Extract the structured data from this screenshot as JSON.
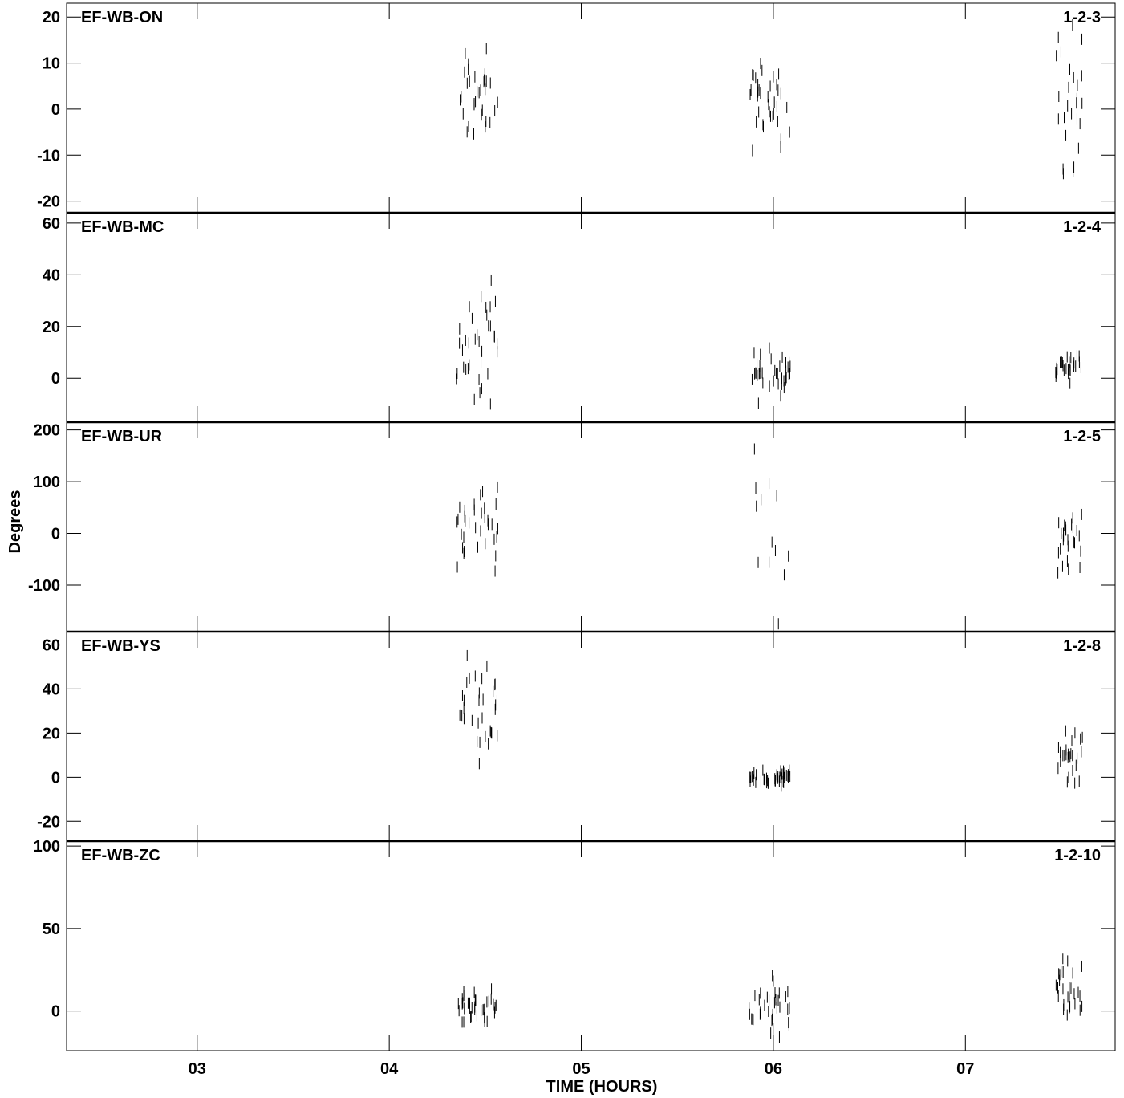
{
  "chart_data": {
    "type": "scatter",
    "title": "",
    "xlabel": "TIME (HOURS)",
    "ylabel": "Degrees",
    "x_tick_labels": [
      "03",
      "04",
      "05",
      "06",
      "07"
    ],
    "xlim": [
      2.32,
      7.78
    ],
    "panels": [
      {
        "baseline": "EF-WB-ON",
        "ident": "1-2-3",
        "ylim": [
          -22.5,
          23
        ],
        "yticks": [
          20,
          10,
          0,
          -10,
          -20
        ],
        "y_tick_labels": [
          "20",
          "10",
          "0",
          "-10",
          "-20"
        ],
        "clusters": [
          {
            "x_start": 4.35,
            "x_end": 4.57,
            "center": 2,
            "spread": 9,
            "n": 34
          },
          {
            "x_start": 5.87,
            "x_end": 6.09,
            "center": 1,
            "spread": 8,
            "n": 36
          },
          {
            "x_start": 7.47,
            "x_end": 7.61,
            "center": 2,
            "spread": 14,
            "n": 26
          }
        ]
      },
      {
        "baseline": "EF-WB-MC",
        "ident": "1-2-4",
        "ylim": [
          -17,
          64
        ],
        "yticks": [
          60,
          40,
          20,
          0
        ],
        "y_tick_labels": [
          "60",
          "40",
          "20",
          "0"
        ],
        "clusters": [
          {
            "x_start": 4.35,
            "x_end": 4.57,
            "center": 15,
            "spread": 22,
            "n": 36
          },
          {
            "x_start": 5.87,
            "x_end": 6.09,
            "center": 1,
            "spread": 8,
            "n": 38
          },
          {
            "x_start": 7.47,
            "x_end": 7.61,
            "center": 5,
            "spread": 5,
            "n": 28
          }
        ]
      },
      {
        "baseline": "EF-WB-UR",
        "ident": "1-2-5",
        "ylim": [
          -190,
          215
        ],
        "yticks": [
          200,
          100,
          0,
          -100
        ],
        "y_tick_labels": [
          "200",
          "100",
          "0",
          "-100"
        ],
        "clusters": [
          {
            "x_start": 4.35,
            "x_end": 4.57,
            "center": 15,
            "spread": 70,
            "n": 34
          },
          {
            "x_start": 5.9,
            "x_end": 6.09,
            "center": 0,
            "spread": 180,
            "n": 14
          },
          {
            "x_start": 7.47,
            "x_end": 7.61,
            "center": -15,
            "spread": 60,
            "n": 28
          }
        ]
      },
      {
        "baseline": "EF-WB-YS",
        "ident": "1-2-8",
        "ylim": [
          -29,
          66
        ],
        "yticks": [
          60,
          40,
          20,
          0,
          -20
        ],
        "y_tick_labels": [
          "60",
          "40",
          "20",
          "0",
          "-20"
        ],
        "clusters": [
          {
            "x_start": 4.35,
            "x_end": 4.57,
            "center": 32,
            "spread": 18,
            "n": 34
          },
          {
            "x_start": 5.87,
            "x_end": 6.09,
            "center": 0,
            "spread": 3,
            "n": 48
          },
          {
            "x_start": 7.47,
            "x_end": 7.61,
            "center": 10,
            "spread": 10,
            "n": 26
          }
        ]
      },
      {
        "baseline": "EF-WB-ZC",
        "ident": "1-2-10",
        "ylim": [
          -24,
          103
        ],
        "yticks": [
          100,
          50,
          0
        ],
        "y_tick_labels": [
          "100",
          "50",
          "0"
        ],
        "clusters": [
          {
            "x_start": 4.35,
            "x_end": 4.57,
            "center": 3,
            "spread": 8,
            "n": 36
          },
          {
            "x_start": 5.87,
            "x_end": 6.09,
            "center": 2,
            "spread": 15,
            "n": 36
          },
          {
            "x_start": 7.47,
            "x_end": 7.61,
            "center": 12,
            "spread": 16,
            "n": 28
          }
        ]
      }
    ],
    "grid": false,
    "legend": "none"
  }
}
